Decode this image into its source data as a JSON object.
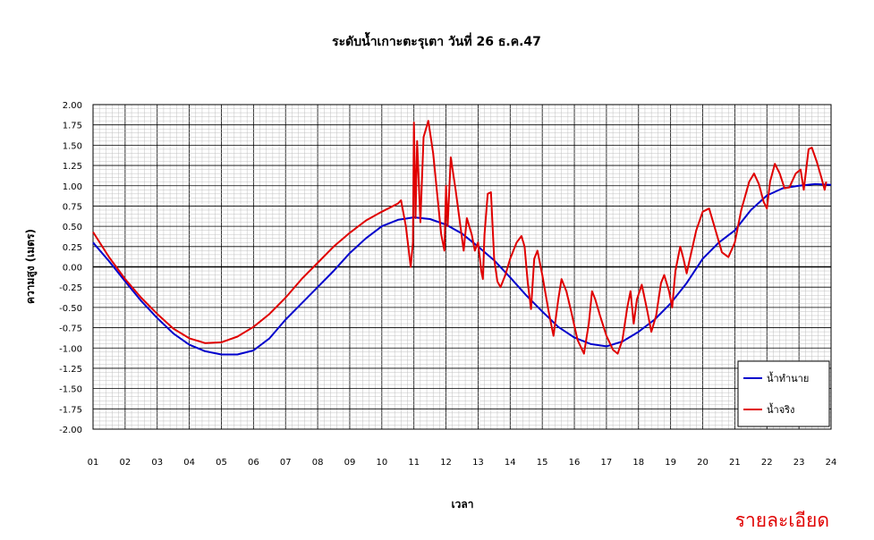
{
  "detail_link": "รายละเอียด",
  "chart_data": {
    "type": "line",
    "title": "ระดับน้ำเกาะตะรุเตา วันที่ 26 ธ.ค.47",
    "xlabel": "เวลา",
    "ylabel": "ความสูง (เมตร)",
    "ylim": [
      -2.0,
      2.0
    ],
    "ytick_step": 0.25,
    "xlim": [
      1,
      24
    ],
    "x_tick_labels": [
      "01",
      "02",
      "03",
      "04",
      "05",
      "06",
      "07",
      "08",
      "09",
      "10",
      "11",
      "12",
      "13",
      "14",
      "15",
      "16",
      "17",
      "18",
      "19",
      "20",
      "21",
      "22",
      "23",
      "24"
    ],
    "grid": true,
    "legend_position": "bottom-right",
    "series": [
      {
        "name": "น้ำทำนาย",
        "color": "#0000cc",
        "points": [
          [
            1,
            0.3
          ],
          [
            1.5,
            0.07
          ],
          [
            2,
            -0.18
          ],
          [
            2.5,
            -0.42
          ],
          [
            3,
            -0.63
          ],
          [
            3.5,
            -0.82
          ],
          [
            4,
            -0.96
          ],
          [
            4.5,
            -1.04
          ],
          [
            5,
            -1.08
          ],
          [
            5.5,
            -1.08
          ],
          [
            6,
            -1.03
          ],
          [
            6.5,
            -0.88
          ],
          [
            7,
            -0.65
          ],
          [
            7.5,
            -0.45
          ],
          [
            8,
            -0.25
          ],
          [
            8.5,
            -0.05
          ],
          [
            9,
            0.17
          ],
          [
            9.5,
            0.35
          ],
          [
            10,
            0.5
          ],
          [
            10.5,
            0.58
          ],
          [
            11,
            0.61
          ],
          [
            11.5,
            0.59
          ],
          [
            12,
            0.52
          ],
          [
            12.5,
            0.41
          ],
          [
            13,
            0.25
          ],
          [
            13.5,
            0.08
          ],
          [
            14,
            -0.13
          ],
          [
            14.5,
            -0.35
          ],
          [
            15,
            -0.55
          ],
          [
            15.5,
            -0.74
          ],
          [
            16,
            -0.87
          ],
          [
            16.5,
            -0.95
          ],
          [
            17,
            -0.98
          ],
          [
            17.5,
            -0.92
          ],
          [
            18,
            -0.8
          ],
          [
            18.5,
            -0.65
          ],
          [
            19,
            -0.45
          ],
          [
            19.5,
            -0.2
          ],
          [
            20,
            0.1
          ],
          [
            20.5,
            0.3
          ],
          [
            21,
            0.45
          ],
          [
            21.5,
            0.7
          ],
          [
            22,
            0.88
          ],
          [
            22.5,
            0.97
          ],
          [
            23,
            1.0
          ],
          [
            23.5,
            1.02
          ],
          [
            24,
            1.01
          ]
        ]
      },
      {
        "name": "น้ำจริง",
        "color": "#e00000",
        "points": [
          [
            1,
            0.43
          ],
          [
            1.5,
            0.12
          ],
          [
            2,
            -0.15
          ],
          [
            2.5,
            -0.38
          ],
          [
            3,
            -0.58
          ],
          [
            3.5,
            -0.76
          ],
          [
            4,
            -0.88
          ],
          [
            4.5,
            -0.94
          ],
          [
            5,
            -0.93
          ],
          [
            5.5,
            -0.86
          ],
          [
            6,
            -0.74
          ],
          [
            6.5,
            -0.58
          ],
          [
            7,
            -0.38
          ],
          [
            7.5,
            -0.15
          ],
          [
            8,
            0.05
          ],
          [
            8.5,
            0.25
          ],
          [
            9,
            0.42
          ],
          [
            9.5,
            0.57
          ],
          [
            10,
            0.68
          ],
          [
            10.5,
            0.78
          ],
          [
            10.6,
            0.82
          ],
          [
            10.75,
            0.5
          ],
          [
            10.9,
            0.0
          ],
          [
            10.97,
            0.3
          ],
          [
            11.0,
            1.78
          ],
          [
            11.05,
            0.6
          ],
          [
            11.1,
            1.55
          ],
          [
            11.2,
            0.55
          ],
          [
            11.3,
            1.6
          ],
          [
            11.45,
            1.8
          ],
          [
            11.6,
            1.4
          ],
          [
            11.75,
            0.8
          ],
          [
            11.85,
            0.4
          ],
          [
            11.95,
            0.2
          ],
          [
            12.0,
            1.0
          ],
          [
            12.05,
            0.5
          ],
          [
            12.15,
            1.35
          ],
          [
            12.3,
            0.95
          ],
          [
            12.45,
            0.5
          ],
          [
            12.55,
            0.2
          ],
          [
            12.65,
            0.6
          ],
          [
            12.8,
            0.4
          ],
          [
            12.9,
            0.2
          ],
          [
            13.0,
            0.3
          ],
          [
            13.1,
            -0.05
          ],
          [
            13.15,
            -0.15
          ],
          [
            13.2,
            0.4
          ],
          [
            13.3,
            0.9
          ],
          [
            13.4,
            0.92
          ],
          [
            13.5,
            0.1
          ],
          [
            13.6,
            -0.18
          ],
          [
            13.7,
            -0.25
          ],
          [
            13.85,
            -0.1
          ],
          [
            14.0,
            0.1
          ],
          [
            14.2,
            0.3
          ],
          [
            14.35,
            0.38
          ],
          [
            14.45,
            0.25
          ],
          [
            14.55,
            -0.2
          ],
          [
            14.65,
            -0.52
          ],
          [
            14.75,
            0.1
          ],
          [
            14.85,
            0.2
          ],
          [
            15.0,
            -0.1
          ],
          [
            15.2,
            -0.55
          ],
          [
            15.35,
            -0.85
          ],
          [
            15.5,
            -0.4
          ],
          [
            15.6,
            -0.15
          ],
          [
            15.75,
            -0.3
          ],
          [
            15.9,
            -0.55
          ],
          [
            16.1,
            -0.9
          ],
          [
            16.3,
            -1.07
          ],
          [
            16.45,
            -0.7
          ],
          [
            16.55,
            -0.3
          ],
          [
            16.65,
            -0.4
          ],
          [
            16.8,
            -0.6
          ],
          [
            17.0,
            -0.85
          ],
          [
            17.2,
            -1.02
          ],
          [
            17.35,
            -1.07
          ],
          [
            17.5,
            -0.9
          ],
          [
            17.65,
            -0.5
          ],
          [
            17.75,
            -0.3
          ],
          [
            17.85,
            -0.7
          ],
          [
            17.95,
            -0.4
          ],
          [
            18.1,
            -0.22
          ],
          [
            18.25,
            -0.5
          ],
          [
            18.4,
            -0.8
          ],
          [
            18.55,
            -0.6
          ],
          [
            18.7,
            -0.2
          ],
          [
            18.8,
            -0.1
          ],
          [
            18.95,
            -0.3
          ],
          [
            19.05,
            -0.5
          ],
          [
            19.15,
            -0.05
          ],
          [
            19.3,
            0.25
          ],
          [
            19.4,
            0.1
          ],
          [
            19.5,
            -0.08
          ],
          [
            19.6,
            0.1
          ],
          [
            19.8,
            0.45
          ],
          [
            20.0,
            0.68
          ],
          [
            20.2,
            0.72
          ],
          [
            20.4,
            0.45
          ],
          [
            20.6,
            0.18
          ],
          [
            20.8,
            0.12
          ],
          [
            21.0,
            0.3
          ],
          [
            21.2,
            0.7
          ],
          [
            21.45,
            1.05
          ],
          [
            21.6,
            1.15
          ],
          [
            21.75,
            1.02
          ],
          [
            21.9,
            0.8
          ],
          [
            22.0,
            0.72
          ],
          [
            22.1,
            1.05
          ],
          [
            22.25,
            1.27
          ],
          [
            22.4,
            1.15
          ],
          [
            22.55,
            0.97
          ],
          [
            22.7,
            0.98
          ],
          [
            22.9,
            1.15
          ],
          [
            23.05,
            1.2
          ],
          [
            23.15,
            0.95
          ],
          [
            23.3,
            1.45
          ],
          [
            23.4,
            1.47
          ],
          [
            23.55,
            1.3
          ],
          [
            23.7,
            1.1
          ],
          [
            23.8,
            0.95
          ],
          [
            23.85,
            1.05
          ]
        ]
      }
    ]
  }
}
